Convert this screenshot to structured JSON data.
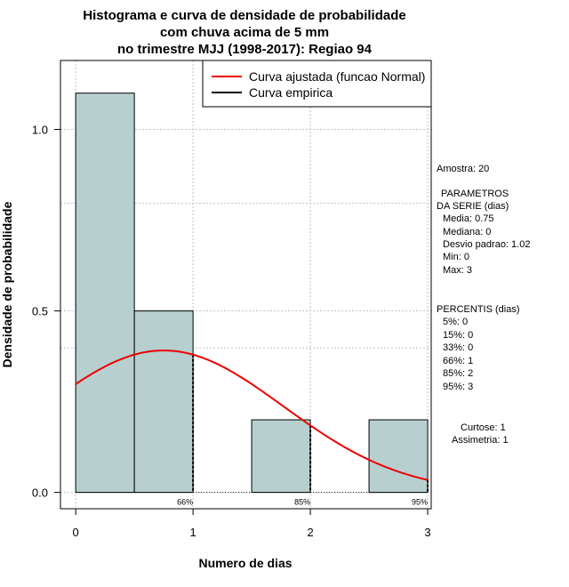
{
  "chart_data": {
    "type": "bar",
    "title_lines": [
      "Histograma e curva de densidade de probabilidade",
      "com chuva acima de 5 mm",
      "no trimestre MJJ (1998-2017): Regiao 94"
    ],
    "xlabel": "Numero de dias",
    "ylabel": "Densidade de probabilidade",
    "xlim": [
      -0.13,
      3.03
    ],
    "ylim": [
      -0.045,
      1.19
    ],
    "x_ticks": [
      "0",
      "1",
      "2",
      "3"
    ],
    "y_ticks": [
      "0.0",
      "0.5",
      "1.0"
    ],
    "bins": [
      {
        "start": 0.0,
        "end": 0.5,
        "density": 1.1
      },
      {
        "start": 0.5,
        "end": 1.0,
        "density": 0.5
      },
      {
        "start": 1.5,
        "end": 2.0,
        "density": 0.2
      },
      {
        "start": 2.5,
        "end": 3.0,
        "density": 0.2
      }
    ],
    "bar_color": "#b7cfcf",
    "grid_color": "#c0c0c0",
    "normal_fit": {
      "mean": 0.75,
      "sd": 1.02,
      "x_from": 0,
      "x_to": 3,
      "color": "#ee0000"
    },
    "percentile_markers": [
      {
        "x": 1,
        "label": "66%"
      },
      {
        "x": 2,
        "label": "85%"
      },
      {
        "x": 3,
        "label": "95%"
      }
    ],
    "legend": [
      {
        "label": "Curva ajustada (funcao Normal)",
        "color": "#ee0000"
      },
      {
        "label": "Curva empirica",
        "color": "#000000"
      }
    ],
    "legend_position": "top-right"
  },
  "stats": {
    "amostra": "Amostra: 20",
    "params_title_1": "PARAMETROS",
    "params_title_2": "DA SERIE (dias)",
    "params": [
      "Media: 0.75",
      "Mediana: 0",
      "Desvio padrao: 1.02",
      "Min: 0",
      "Max: 3"
    ],
    "perc_title": "PERCENTIS (dias)",
    "percentis": [
      "5%: 0",
      "15%: 0",
      "33%: 0",
      "66%: 1",
      "85%: 2",
      "95%: 3"
    ],
    "curtose": "Curtose: 1",
    "assimetria": "Assimetria: 1"
  }
}
